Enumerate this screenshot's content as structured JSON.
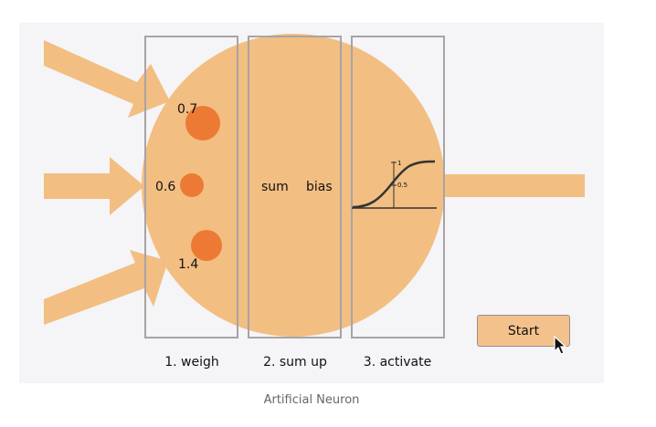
{
  "diagram": {
    "weights": [
      "0.7",
      "0.6",
      "1.4"
    ],
    "sum_label": "sum",
    "bias_label": "bias",
    "activation": {
      "y_tick_top": "1",
      "y_tick_mid": "0.5"
    },
    "steps": [
      "1. weigh",
      "2. sum up",
      "3. activate"
    ],
    "colors": {
      "neuron_fill": "#f2be82",
      "weight_dot": "#ec7a34",
      "box_stroke": "#a8a4a4",
      "background": "#f5f4f7"
    }
  },
  "controls": {
    "start_label": "Start"
  },
  "caption": "Artificial Neuron"
}
